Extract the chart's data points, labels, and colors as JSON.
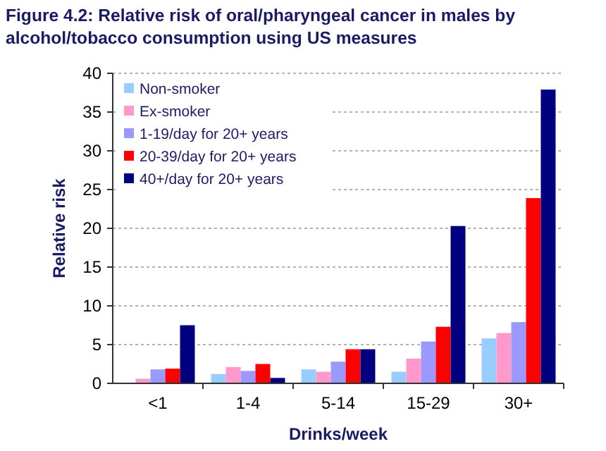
{
  "chart_data": {
    "type": "bar",
    "title": "Figure 4.2: Relative risk of oral/pharyngeal cancer in males by alcohol/tobacco consumption using US measures",
    "xlabel": "Drinks/week",
    "ylabel": "Relative risk",
    "categories": [
      "<1",
      "1-4",
      "5-14",
      "15-29",
      "30+"
    ],
    "series": [
      {
        "name": "Non-smoker",
        "color": "#99ccff",
        "values": [
          null,
          1.2,
          1.8,
          1.5,
          5.8
        ]
      },
      {
        "name": "Ex-smoker",
        "color": "#ff99cc",
        "values": [
          0.6,
          2.1,
          1.5,
          3.2,
          6.5
        ]
      },
      {
        "name": "1-19/day for 20+ years",
        "color": "#9999ff",
        "values": [
          1.8,
          1.6,
          2.8,
          5.4,
          7.9
        ]
      },
      {
        "name": "20-39/day for 20+ years",
        "color": "#ff0000",
        "values": [
          1.9,
          2.5,
          4.4,
          7.3,
          23.9
        ]
      },
      {
        "name": "40+/day for 20+ years",
        "color": "#000080",
        "values": [
          7.5,
          0.7,
          4.4,
          20.3,
          37.9
        ]
      }
    ],
    "ylim": [
      0,
      40
    ],
    "yticks": [
      0,
      5,
      10,
      15,
      20,
      25,
      30,
      35,
      40
    ],
    "grid": "y",
    "legend": "top left"
  }
}
